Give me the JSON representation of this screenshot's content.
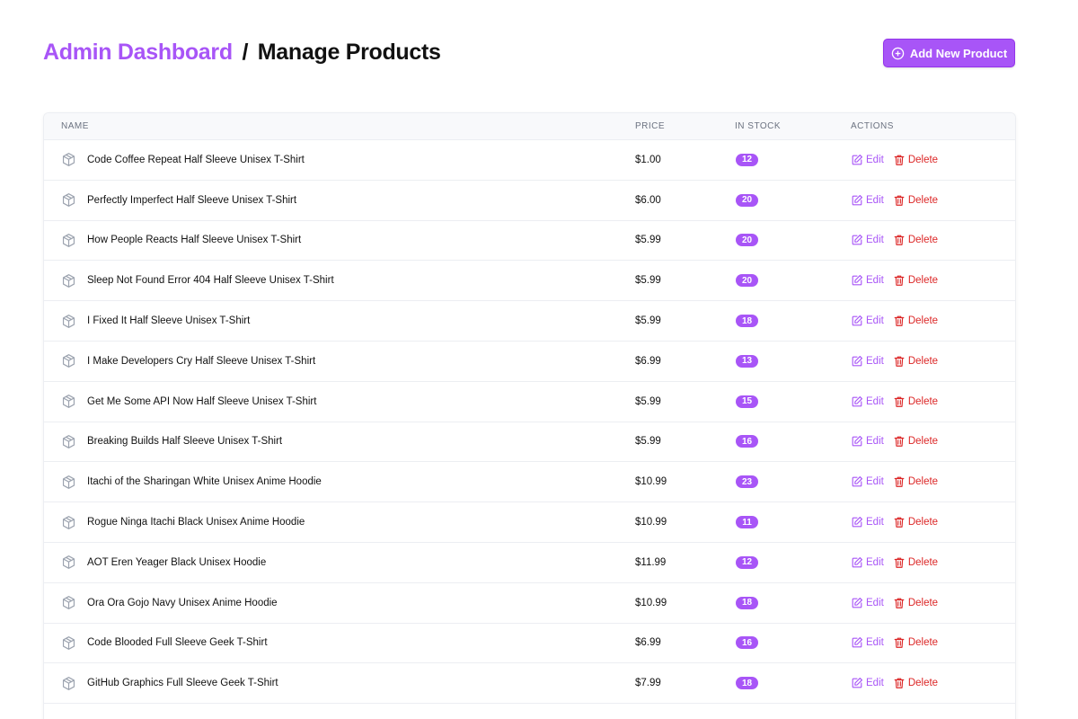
{
  "header": {
    "crumb": "Admin Dashboard",
    "separator": "/",
    "page_title": "Manage Products",
    "add_button_label": "Add New Product"
  },
  "table": {
    "columns": [
      "Name",
      "Price",
      "In Stock",
      "Actions"
    ],
    "edit_label": "Edit",
    "delete_label": "Delete",
    "rows": [
      {
        "name": "Code Coffee Repeat Half Sleeve Unisex T-Shirt",
        "price": "$1.00",
        "stock": "12"
      },
      {
        "name": "Perfectly Imperfect Half Sleeve Unisex T-Shirt",
        "price": "$6.00",
        "stock": "20"
      },
      {
        "name": "How People Reacts Half Sleeve Unisex T-Shirt",
        "price": "$5.99",
        "stock": "20"
      },
      {
        "name": "Sleep Not Found Error 404 Half Sleeve Unisex T-Shirt",
        "price": "$5.99",
        "stock": "20"
      },
      {
        "name": "I Fixed It Half Sleeve Unisex T-Shirt",
        "price": "$5.99",
        "stock": "18"
      },
      {
        "name": "I Make Developers Cry Half Sleeve Unisex T-Shirt",
        "price": "$6.99",
        "stock": "13"
      },
      {
        "name": "Get Me Some API Now Half Sleeve Unisex T-Shirt",
        "price": "$5.99",
        "stock": "15"
      },
      {
        "name": "Breaking Builds Half Sleeve Unisex T-Shirt",
        "price": "$5.99",
        "stock": "16"
      },
      {
        "name": "Itachi of the Sharingan White Unisex Anime Hoodie",
        "price": "$10.99",
        "stock": "23"
      },
      {
        "name": "Rogue Ninga Itachi Black Unisex Anime Hoodie",
        "price": "$10.99",
        "stock": "11"
      },
      {
        "name": "AOT Eren Yeager Black Unisex Hoodie",
        "price": "$11.99",
        "stock": "12"
      },
      {
        "name": "Ora Ora Gojo Navy Unisex Anime Hoodie",
        "price": "$10.99",
        "stock": "18"
      },
      {
        "name": "Code Blooded Full Sleeve Geek T-Shirt",
        "price": "$6.99",
        "stock": "16"
      },
      {
        "name": "GitHub Graphics Full Sleeve Geek T-Shirt",
        "price": "$7.99",
        "stock": "18"
      }
    ]
  },
  "icons": {
    "add": "plus-circle-icon",
    "product": "cube-icon",
    "edit": "pencil-square-icon",
    "delete": "trash-icon"
  },
  "colors": {
    "accent": "#a855f7",
    "danger": "#dc2626",
    "muted": "#6b7280"
  }
}
